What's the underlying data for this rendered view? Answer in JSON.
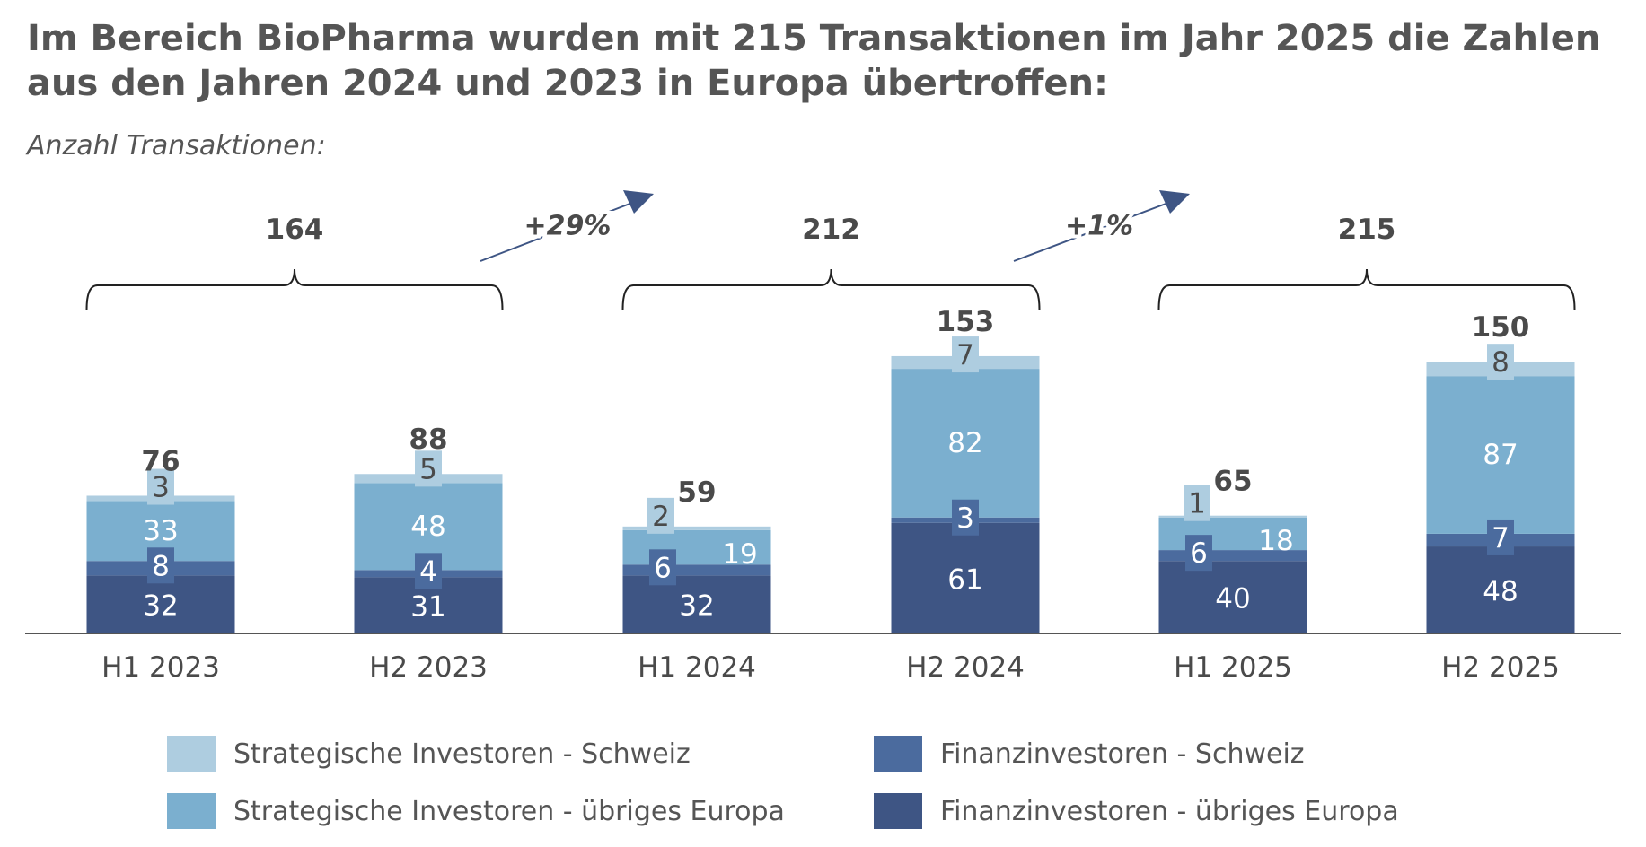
{
  "title": "Im Bereich BioPharma wurden mit 215 Transaktionen im Jahr 2025 die Zahlen aus den Jahren 2024 und 2023 in Europa übertroffen:",
  "subtitle": "Anzahl Transaktionen:",
  "colors": {
    "fin_europa": "#3e5584",
    "fin_schweiz": "#4b6b9e",
    "strat_europa": "#7bafcf",
    "strat_schweiz": "#aecde0",
    "axis": "#555555",
    "label_dark": "#4a4a4a",
    "label_light": "#ffffff",
    "arrow": "#3e5584"
  },
  "chart_data": {
    "type": "bar",
    "stacked": true,
    "categories": [
      "H1 2023",
      "H2 2023",
      "H1 2024",
      "H2 2024",
      "H1 2025",
      "H2 2025"
    ],
    "series": [
      {
        "key": "fin_europa",
        "name": "Finanzinvestoren - übriges Europa",
        "values": [
          32,
          31,
          32,
          61,
          40,
          48
        ]
      },
      {
        "key": "fin_schweiz",
        "name": "Finanzinvestoren - Schweiz",
        "values": [
          8,
          4,
          6,
          3,
          6,
          7
        ]
      },
      {
        "key": "strat_europa",
        "name": "Strategische Investoren - übriges Europa",
        "values": [
          33,
          48,
          19,
          82,
          18,
          87
        ]
      },
      {
        "key": "strat_schweiz",
        "name": "Strategische Investoren - Schweiz",
        "values": [
          3,
          5,
          2,
          7,
          1,
          8
        ]
      }
    ],
    "totals": [
      76,
      88,
      59,
      153,
      65,
      150
    ],
    "year_totals": [
      {
        "year": "2023",
        "value": "164"
      },
      {
        "year": "2024",
        "value": "212"
      },
      {
        "year": "2025",
        "value": "215"
      }
    ],
    "growth_labels": [
      "+29%",
      "+1%"
    ],
    "ylim": [
      0,
      160
    ],
    "xlabel": "",
    "ylabel": "",
    "legend_position": "bottom"
  },
  "legend": {
    "strat_schweiz": "Strategische Investoren - Schweiz",
    "strat_europa": "Strategische Investoren - übriges Europa",
    "fin_schweiz": "Finanzinvestoren - Schweiz",
    "fin_europa": "Finanzinvestoren - übriges Europa"
  }
}
